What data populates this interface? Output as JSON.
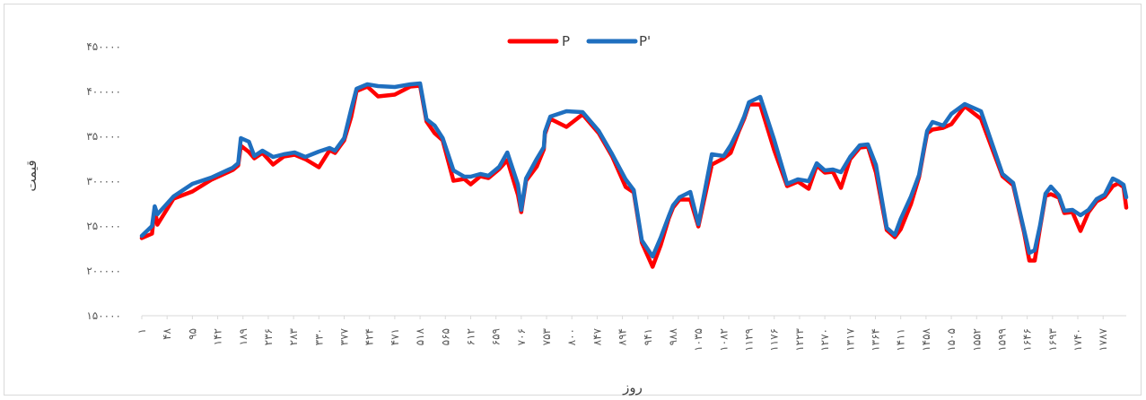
{
  "chart_data": {
    "type": "line",
    "title": "",
    "xlabel": "روز",
    "ylabel": "قیمت",
    "ylim": [
      150000,
      450000
    ],
    "yticks": [
      150000,
      200000,
      250000,
      300000,
      350000,
      400000,
      450000
    ],
    "ytick_labels": [
      "۱۵۰۰۰۰",
      "۲۰۰۰۰۰",
      "۲۵۰۰۰۰",
      "۳۰۰۰۰۰",
      "۳۵۰۰۰۰",
      "۴۰۰۰۰۰",
      "۴۵۰۰۰۰"
    ],
    "xlim": [
      1,
      1830
    ],
    "xticks": [
      1,
      48,
      95,
      142,
      189,
      236,
      283,
      330,
      377,
      424,
      471,
      518,
      565,
      612,
      659,
      706,
      753,
      800,
      847,
      894,
      941,
      988,
      1035,
      1082,
      1129,
      1176,
      1223,
      1270,
      1317,
      1364,
      1411,
      1458,
      1505,
      1552,
      1599,
      1646,
      1693,
      1740,
      1787
    ],
    "xtick_labels": [
      "۱",
      "۴۸",
      "۹۵",
      "۱۴۲",
      "۱۸۹",
      "۲۳۶",
      "۲۸۳",
      "۳۳۰",
      "۳۷۷",
      "۴۲۴",
      "۴۷۱",
      "۵۱۸",
      "۵۶۵",
      "۶۱۲",
      "۶۵۹",
      "۷۰۶",
      "۷۵۳",
      "۸۰۰",
      "۸۴۷",
      "۸۹۴",
      "۹۴۱",
      "۹۸۸",
      "۱۰۳۵",
      "۱۰۸۲",
      "۱۱۲۹",
      "۱۱۷۶",
      "۱۲۲۳",
      "۱۲۷۰",
      "۱۳۱۷",
      "۱۳۶۴",
      "۱۴۱۱",
      "۱۴۵۸",
      "۱۵۰۵",
      "۱۵۵۲",
      "۱۵۹۹",
      "۱۶۴۶",
      "۱۶۹۳",
      "۱۷۴۰",
      "۱۷۸۷"
    ],
    "grid": false,
    "legend_position": "top",
    "series": [
      {
        "name": "P",
        "color": "#ff0000"
      },
      {
        "name": "P'",
        "color": "#1f6fbf"
      }
    ],
    "x": [
      1,
      20,
      25,
      30,
      60,
      95,
      130,
      170,
      180,
      185,
      200,
      210,
      225,
      245,
      265,
      285,
      305,
      330,
      350,
      360,
      377,
      390,
      400,
      420,
      440,
      471,
      500,
      518,
      530,
      545,
      560,
      580,
      600,
      612,
      630,
      645,
      665,
      680,
      700,
      706,
      715,
      735,
      748,
      750,
      760,
      790,
      820,
      850,
      875,
      900,
      915,
      930,
      950,
      965,
      980,
      988,
      1000,
      1020,
      1035,
      1060,
      1082,
      1095,
      1110,
      1120,
      1129,
      1150,
      1176,
      1200,
      1220,
      1240,
      1255,
      1270,
      1285,
      1300,
      1317,
      1335,
      1350,
      1365,
      1385,
      1400,
      1411,
      1430,
      1445,
      1455,
      1460,
      1470,
      1490,
      1505,
      1530,
      1560,
      1600,
      1620,
      1640,
      1650,
      1660,
      1670,
      1680,
      1690,
      1705,
      1715,
      1730,
      1745,
      1760,
      1775,
      1790,
      1805,
      1815,
      1825,
      1830
    ],
    "p_prime": [
      239000,
      250000,
      272000,
      263000,
      283000,
      297000,
      304000,
      315000,
      320000,
      348000,
      344000,
      328000,
      334000,
      327000,
      330000,
      332000,
      327000,
      333000,
      337000,
      334000,
      348000,
      380000,
      403000,
      408000,
      406000,
      405000,
      408000,
      409000,
      369000,
      362000,
      348000,
      312000,
      305000,
      305000,
      308000,
      306000,
      316000,
      332000,
      296000,
      268000,
      303000,
      325000,
      338000,
      355000,
      372000,
      378000,
      377000,
      356000,
      330000,
      302000,
      290000,
      234000,
      216000,
      237000,
      261000,
      273000,
      282000,
      288000,
      252000,
      330000,
      328000,
      340000,
      358000,
      372000,
      388000,
      394000,
      346000,
      297000,
      302000,
      300000,
      320000,
      312000,
      313000,
      310000,
      327000,
      340000,
      341000,
      318000,
      248000,
      240000,
      258000,
      283000,
      307000,
      340000,
      356000,
      366000,
      362000,
      375000,
      386000,
      378000,
      308000,
      298000,
      246000,
      220000,
      223000,
      251000,
      286000,
      294000,
      284000,
      267000,
      268000,
      262000,
      268000,
      280000,
      285000,
      303000,
      300000,
      296000,
      282000
    ]
  }
}
